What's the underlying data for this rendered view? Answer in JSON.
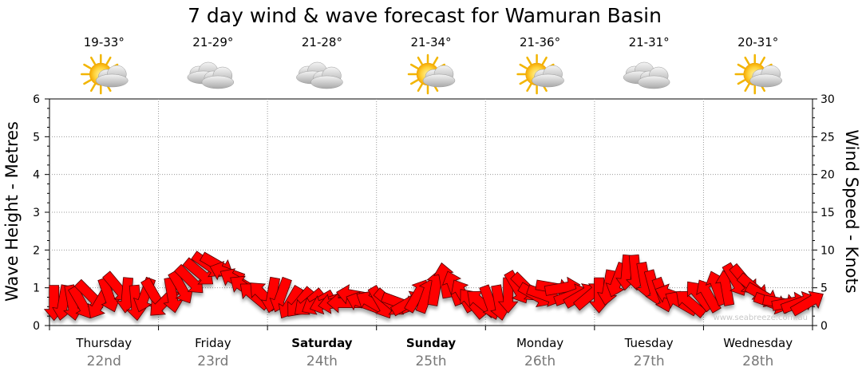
{
  "chart_data": {
    "type": "line",
    "title": "7 day wind & wave forecast for Wamuran Basin",
    "ylabel_left": "Wave Height - Metres",
    "ylabel_right": "Wind Speed - Knots",
    "ylim_left": [
      0,
      6
    ],
    "ylim_right": [
      0,
      30
    ],
    "yticks_left": [
      "0",
      "1",
      "2",
      "3",
      "4",
      "5",
      "6"
    ],
    "yticks_right": [
      "0",
      "5",
      "10",
      "15",
      "20",
      "25",
      "30"
    ],
    "grid": true,
    "days": [
      {
        "day": "Thursday",
        "date": "22nd",
        "temp": "19-33°",
        "icon": "sun-cloud-icon",
        "bold": false
      },
      {
        "day": "Friday",
        "date": "23rd",
        "temp": "21-29°",
        "icon": "cloud-icon",
        "bold": false
      },
      {
        "day": "Saturday",
        "date": "24th",
        "temp": "21-28°",
        "icon": "cloud-icon",
        "bold": true
      },
      {
        "day": "Sunday",
        "date": "25th",
        "temp": "21-34°",
        "icon": "sun-cloud-icon",
        "bold": true
      },
      {
        "day": "Monday",
        "date": "26th",
        "temp": "21-36°",
        "icon": "sun-cloud-icon",
        "bold": false
      },
      {
        "day": "Tuesday",
        "date": "27th",
        "temp": "21-31°",
        "icon": "cloud-icon",
        "bold": false
      },
      {
        "day": "Wednesday",
        "date": "28th",
        "temp": "20-31°",
        "icon": "sun-cloud-icon",
        "bold": false
      }
    ],
    "series": [
      {
        "name": "Wind Speed - Knots",
        "unit": "knots",
        "color": "#ff0000",
        "x_days": [
          0.0,
          0.0833,
          0.1667,
          0.25,
          0.3333,
          0.4167,
          0.5,
          0.5833,
          0.6667,
          0.75,
          0.8333,
          0.9167,
          1.0,
          1.0833,
          1.1667,
          1.25,
          1.3333,
          1.4167,
          1.5,
          1.5833,
          1.6667,
          1.75,
          1.8333,
          1.9167,
          2.0,
          2.0833,
          2.1667,
          2.25,
          2.3333,
          2.4167,
          2.5,
          2.5833,
          2.6667,
          2.75,
          2.8333,
          2.9167,
          3.0,
          3.0833,
          3.1667,
          3.25,
          3.3333,
          3.4167,
          3.5,
          3.5833,
          3.6667,
          3.75,
          3.8333,
          3.9167,
          4.0,
          4.0833,
          4.1667,
          4.25,
          4.3333,
          4.4167,
          4.5,
          4.5833,
          4.6667,
          4.75,
          4.8333,
          4.9167,
          5.0,
          5.0833,
          5.1667,
          5.25,
          5.3333,
          5.4167,
          5.5,
          5.5833,
          5.6667,
          5.75,
          5.8333,
          5.9167,
          6.0,
          6.0833,
          6.1667,
          6.25,
          6.3333,
          6.4167,
          6.5,
          6.5833,
          6.6667,
          6.75,
          6.8333,
          6.9167
        ],
        "values": [
          3,
          3,
          3,
          3,
          4,
          3,
          4,
          5,
          4,
          3,
          4,
          4,
          3,
          4,
          5,
          6,
          7,
          8,
          8,
          7,
          6,
          5,
          4,
          4,
          4,
          4,
          3,
          3,
          3,
          3,
          3,
          3,
          3,
          4,
          3,
          3,
          3,
          3,
          3,
          3,
          4,
          4,
          5,
          6,
          5,
          4,
          3,
          3,
          3,
          3,
          4,
          5,
          5,
          4,
          4,
          5,
          5,
          4,
          4,
          4,
          4,
          5,
          6,
          7,
          7,
          6,
          5,
          4,
          4,
          3,
          3,
          4,
          4,
          5,
          5,
          6,
          6,
          5,
          4,
          3,
          3,
          3,
          3,
          3
        ],
        "directions_deg": [
          90,
          100,
          80,
          60,
          45,
          120,
          70,
          50,
          95,
          85,
          110,
          60,
          135,
          80,
          60,
          45,
          40,
          35,
          30,
          200,
          210,
          215,
          220,
          225,
          100,
          110,
          120,
          130,
          140,
          150,
          160,
          170,
          180,
          190,
          200,
          210,
          60,
          40,
          20,
          330,
          300,
          290,
          280,
          260,
          250,
          240,
          230,
          220,
          70,
          80,
          90,
          60,
          45,
          30,
          20,
          10,
          350,
          340,
          330,
          320,
          90,
          100,
          110,
          95,
          85,
          80,
          75,
          70,
          200,
          210,
          220,
          230,
          240,
          250,
          260,
          60,
          50,
          40,
          30,
          20,
          10,
          350,
          340,
          330
        ]
      }
    ],
    "watermark": "www.seabreeze.com.au"
  }
}
